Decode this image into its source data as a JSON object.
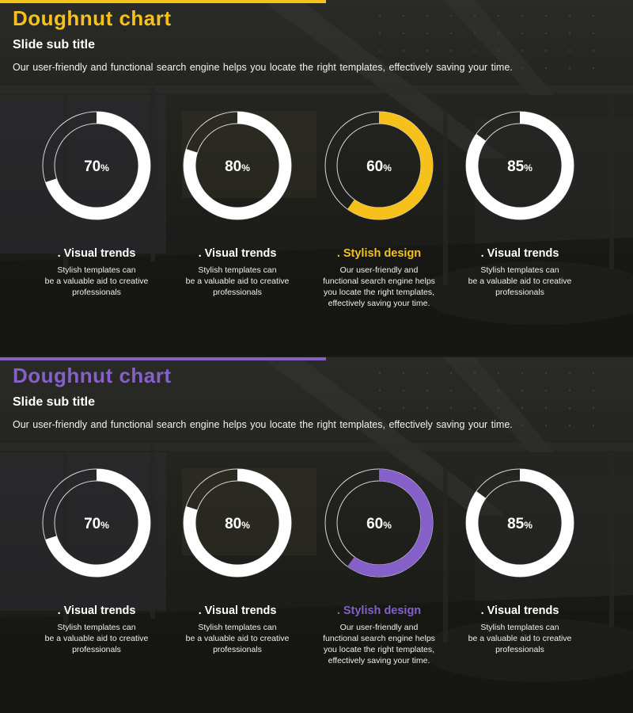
{
  "slides": [
    {
      "accent": "#f6c11b",
      "title": "Doughnut chart",
      "subtitle": "Slide sub title",
      "description": "Our user-friendly and functional search engine helps you locate the right templates, effectively saving your time.",
      "chart_data": {
        "type": "pie",
        "values": [
          70,
          80,
          60,
          85
        ],
        "labels": [
          "70",
          "80",
          "60",
          "85"
        ],
        "unit": "%",
        "highlight_index": 2
      },
      "captions": [
        {
          "heading": ". Visual trends",
          "lines": [
            "Stylish templates can",
            "be a valuable  aid to creative",
            "professionals"
          ]
        },
        {
          "heading": ". Visual trends",
          "lines": [
            "Stylish templates can",
            "be a valuable  aid to creative",
            "professionals"
          ]
        },
        {
          "heading": ". Stylish design",
          "lines": [
            "Our user-friendly  and",
            "functional search engine helps",
            "you locate the right templates,",
            "effectively  saving your time."
          ]
        },
        {
          "heading": ". Visual trends",
          "lines": [
            "Stylish templates can",
            "be a valuable  aid to creative",
            "professionals"
          ]
        }
      ]
    },
    {
      "accent": "#8460c8",
      "title": "Doughnut chart",
      "subtitle": "Slide sub title",
      "description": "Our user-friendly and functional search engine helps you locate the right templates, effectively saving your time.",
      "chart_data": {
        "type": "pie",
        "values": [
          70,
          80,
          60,
          85
        ],
        "labels": [
          "70",
          "80",
          "60",
          "85"
        ],
        "unit": "%",
        "highlight_index": 2
      },
      "captions": [
        {
          "heading": ". Visual trends",
          "lines": [
            "Stylish templates can",
            "be a valuable  aid to creative",
            "professionals"
          ]
        },
        {
          "heading": ". Visual trends",
          "lines": [
            "Stylish templates can",
            "be a valuable  aid to creative",
            "professionals"
          ]
        },
        {
          "heading": ". Stylish design",
          "lines": [
            "Our user-friendly  and",
            "functional search engine helps",
            "you locate the right templates,",
            "effectively  saving your time."
          ]
        },
        {
          "heading": ". Visual trends",
          "lines": [
            "Stylish templates can",
            "be a valuable  aid to creative",
            "professionals"
          ]
        }
      ]
    }
  ]
}
